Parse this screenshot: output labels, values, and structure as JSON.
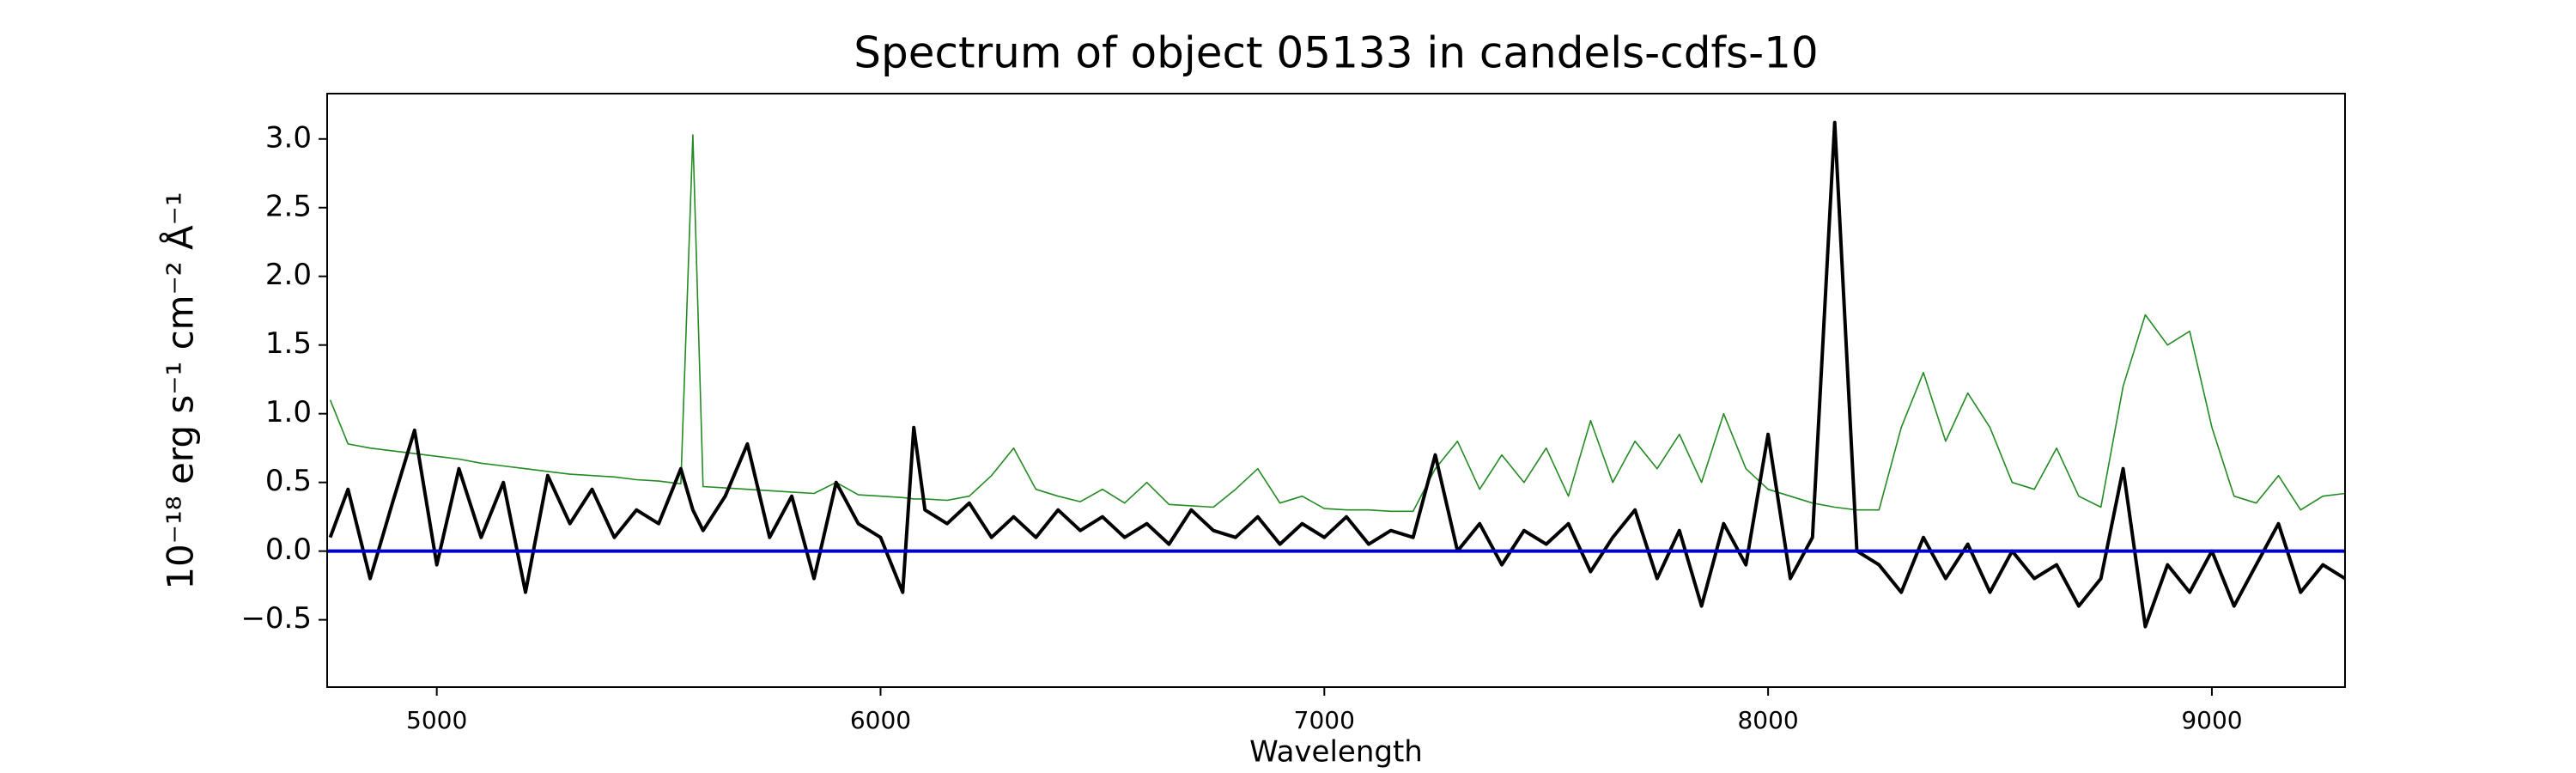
{
  "chart_data": {
    "type": "line",
    "title": "Spectrum of object 05133 in candels-cdfs-10",
    "x_label": "Wavelength",
    "y_label": "10⁻¹⁸ erg s⁻¹ cm⁻² Å⁻¹",
    "xlim": [
      4753,
      9300
    ],
    "ylim": [
      -0.99,
      3.33
    ],
    "xticks": [
      5000,
      6000,
      7000,
      8000,
      9000
    ],
    "yticks": [
      {
        "value": -0.5,
        "label": "−0.5"
      },
      {
        "value": 0,
        "label": "0.0"
      },
      0.5,
      {
        "value": 1,
        "label": "1.0"
      },
      1.5,
      {
        "value": 2,
        "label": "2.0"
      },
      2.5,
      {
        "value": 3,
        "label": "3.0"
      }
    ],
    "hlines": [
      {
        "y": 0,
        "color": "#0000cc"
      }
    ],
    "x": [
      4760,
      4800,
      4850,
      4900,
      4950,
      5000,
      5050,
      5100,
      5150,
      5200,
      5250,
      5300,
      5350,
      5400,
      5450,
      5500,
      5550,
      5577,
      5600,
      5650,
      5700,
      5750,
      5800,
      5850,
      5900,
      5950,
      6000,
      6050,
      6075,
      6100,
      6150,
      6200,
      6250,
      6300,
      6350,
      6400,
      6450,
      6500,
      6550,
      6600,
      6650,
      6700,
      6750,
      6800,
      6850,
      6900,
      6950,
      7000,
      7050,
      7100,
      7150,
      7200,
      7250,
      7300,
      7350,
      7400,
      7450,
      7500,
      7550,
      7600,
      7650,
      7700,
      7750,
      7800,
      7850,
      7900,
      7950,
      8000,
      8050,
      8100,
      8150,
      8200,
      8250,
      8300,
      8350,
      8400,
      8450,
      8500,
      8550,
      8600,
      8650,
      8700,
      8750,
      8800,
      8850,
      8900,
      8950,
      9000,
      9050,
      9100,
      9150,
      9200,
      9250,
      9300
    ],
    "series": [
      {
        "color": "#228b22",
        "width": 1.6,
        "values": [
          1.1,
          0.78,
          0.75,
          0.73,
          0.71,
          0.69,
          0.67,
          0.64,
          0.62,
          0.6,
          0.58,
          0.56,
          0.55,
          0.54,
          0.52,
          0.51,
          0.49,
          3.03,
          0.47,
          0.46,
          0.45,
          0.44,
          0.43,
          0.42,
          0.5,
          0.41,
          0.4,
          0.39,
          0.38,
          0.38,
          0.37,
          0.4,
          0.55,
          0.75,
          0.45,
          0.4,
          0.36,
          0.45,
          0.35,
          0.5,
          0.34,
          0.33,
          0.32,
          0.45,
          0.6,
          0.35,
          0.4,
          0.31,
          0.3,
          0.3,
          0.29,
          0.29,
          0.6,
          0.8,
          0.45,
          0.7,
          0.5,
          0.75,
          0.4,
          0.95,
          0.5,
          0.8,
          0.6,
          0.85,
          0.5,
          1.0,
          0.6,
          0.45,
          0.4,
          0.35,
          0.32,
          0.3,
          0.3,
          0.9,
          1.3,
          0.8,
          1.15,
          0.9,
          0.5,
          0.45,
          0.75,
          0.4,
          0.32,
          1.2,
          1.72,
          1.5,
          1.6,
          0.9,
          0.4,
          0.35,
          0.55,
          0.3,
          0.4,
          0.42
        ]
      },
      {
        "color": "#000000",
        "width": 4,
        "values": [
          0.1,
          0.45,
          -0.2,
          0.35,
          0.88,
          -0.1,
          0.6,
          0.1,
          0.5,
          -0.3,
          0.55,
          0.2,
          0.45,
          0.1,
          0.3,
          0.2,
          0.6,
          0.3,
          0.15,
          0.4,
          0.78,
          0.1,
          0.4,
          -0.2,
          0.5,
          0.2,
          0.1,
          -0.3,
          0.9,
          0.3,
          0.2,
          0.35,
          0.1,
          0.25,
          0.1,
          0.3,
          0.15,
          0.25,
          0.1,
          0.2,
          0.05,
          0.3,
          0.15,
          0.1,
          0.25,
          0.05,
          0.2,
          0.1,
          0.25,
          0.05,
          0.15,
          0.1,
          0.7,
          0.0,
          0.2,
          -0.1,
          0.15,
          0.05,
          0.2,
          -0.15,
          0.1,
          0.3,
          -0.2,
          0.15,
          -0.4,
          0.2,
          -0.1,
          0.85,
          -0.2,
          0.1,
          3.12,
          0.0,
          -0.1,
          -0.3,
          0.1,
          -0.2,
          0.05,
          -0.3,
          0.0,
          -0.2,
          -0.1,
          -0.4,
          -0.2,
          0.6,
          -0.55,
          -0.1,
          -0.3,
          0.0,
          -0.4,
          -0.1,
          0.2,
          -0.3,
          -0.1,
          -0.2
        ]
      }
    ]
  }
}
